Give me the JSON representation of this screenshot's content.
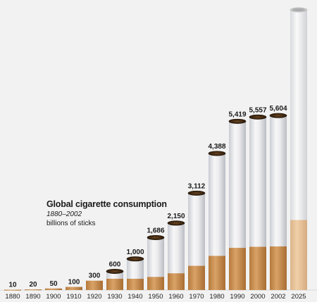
{
  "chart_data": {
    "type": "bar",
    "title": "Global cigarette consumption",
    "subtitle": "1880–2002",
    "ylabel": "billions of sticks",
    "categories": [
      "1880",
      "1890",
      "1900",
      "1910",
      "1920",
      "1930",
      "1940",
      "1950",
      "1960",
      "1970",
      "1980",
      "1990",
      "2000",
      "2002",
      "2025"
    ],
    "values": [
      10,
      20,
      50,
      100,
      300,
      600,
      1000,
      1686,
      2150,
      3112,
      4388,
      5419,
      5557,
      5604,
      9000
    ],
    "data_labels": [
      "10",
      "20",
      "50",
      "100",
      "300",
      "600",
      "1,000",
      "1,686",
      "2,150",
      "3,112",
      "4,388",
      "5,419",
      "5,557",
      "5,604",
      ""
    ],
    "ylim": [
      0,
      9000
    ],
    "grid": false,
    "colors": {
      "paper": "#eeeeee",
      "filter": "#c98f50",
      "tobacco": "#3a2510",
      "background": "#f2f2f2",
      "label": "#1a1a1a"
    }
  }
}
